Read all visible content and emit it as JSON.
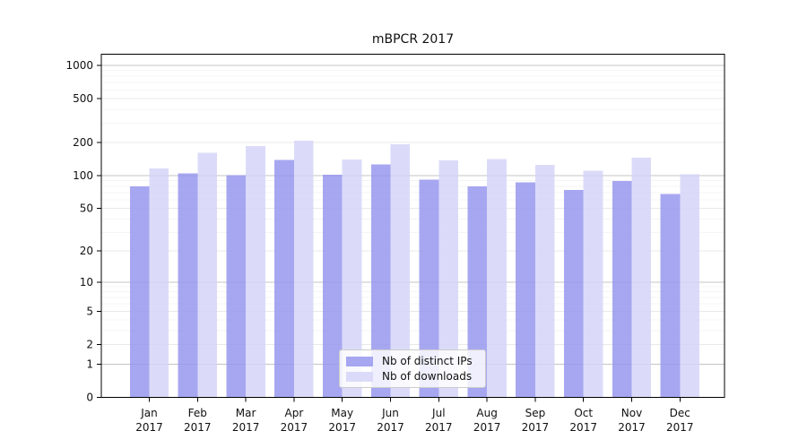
{
  "title": "mBPCR 2017",
  "colors": {
    "bar_ips": "#9898ef",
    "bar_downloads": "#d5d5f8",
    "bar_opacity": 0.85,
    "grid_minor": "#f5f5f6",
    "grid_major": "#e9e9e9",
    "grid_power10": "#c4c4c4",
    "frame": "#000000",
    "background": "#ffffff"
  },
  "legend": {
    "items": [
      {
        "label": "Nb of distinct IPs",
        "color": "#a6a6f1"
      },
      {
        "label": "Nb of downloads",
        "color": "#dbdbf9"
      }
    ]
  },
  "chart_data": {
    "type": "bar",
    "title": "mBPCR 2017",
    "categories": [
      "Jan 2017",
      "Feb 2017",
      "Mar 2017",
      "Apr 2017",
      "May 2017",
      "Jun 2017",
      "Jul 2017",
      "Aug 2017",
      "Sep 2017",
      "Oct 2017",
      "Nov 2017",
      "Dec 2017"
    ],
    "series": [
      {
        "name": "Nb of distinct IPs",
        "values": [
          80,
          105,
          101,
          139,
          102,
          126,
          92,
          80,
          87,
          74,
          89,
          68
        ]
      },
      {
        "name": "Nb of downloads",
        "values": [
          116,
          162,
          186,
          207,
          140,
          192,
          137,
          142,
          125,
          111,
          146,
          103
        ]
      }
    ],
    "xlabel": "",
    "ylabel": "",
    "yscale": "log1p",
    "yticks": [
      0,
      1,
      2,
      5,
      10,
      20,
      50,
      100,
      200,
      500,
      1000
    ],
    "yminorticks": [
      3,
      4,
      6,
      7,
      8,
      9,
      30,
      40,
      60,
      70,
      80,
      90,
      300,
      400,
      600,
      700,
      800,
      900
    ],
    "ylim": [
      0,
      1260
    ],
    "grid": true,
    "legend_position": "lower center"
  }
}
